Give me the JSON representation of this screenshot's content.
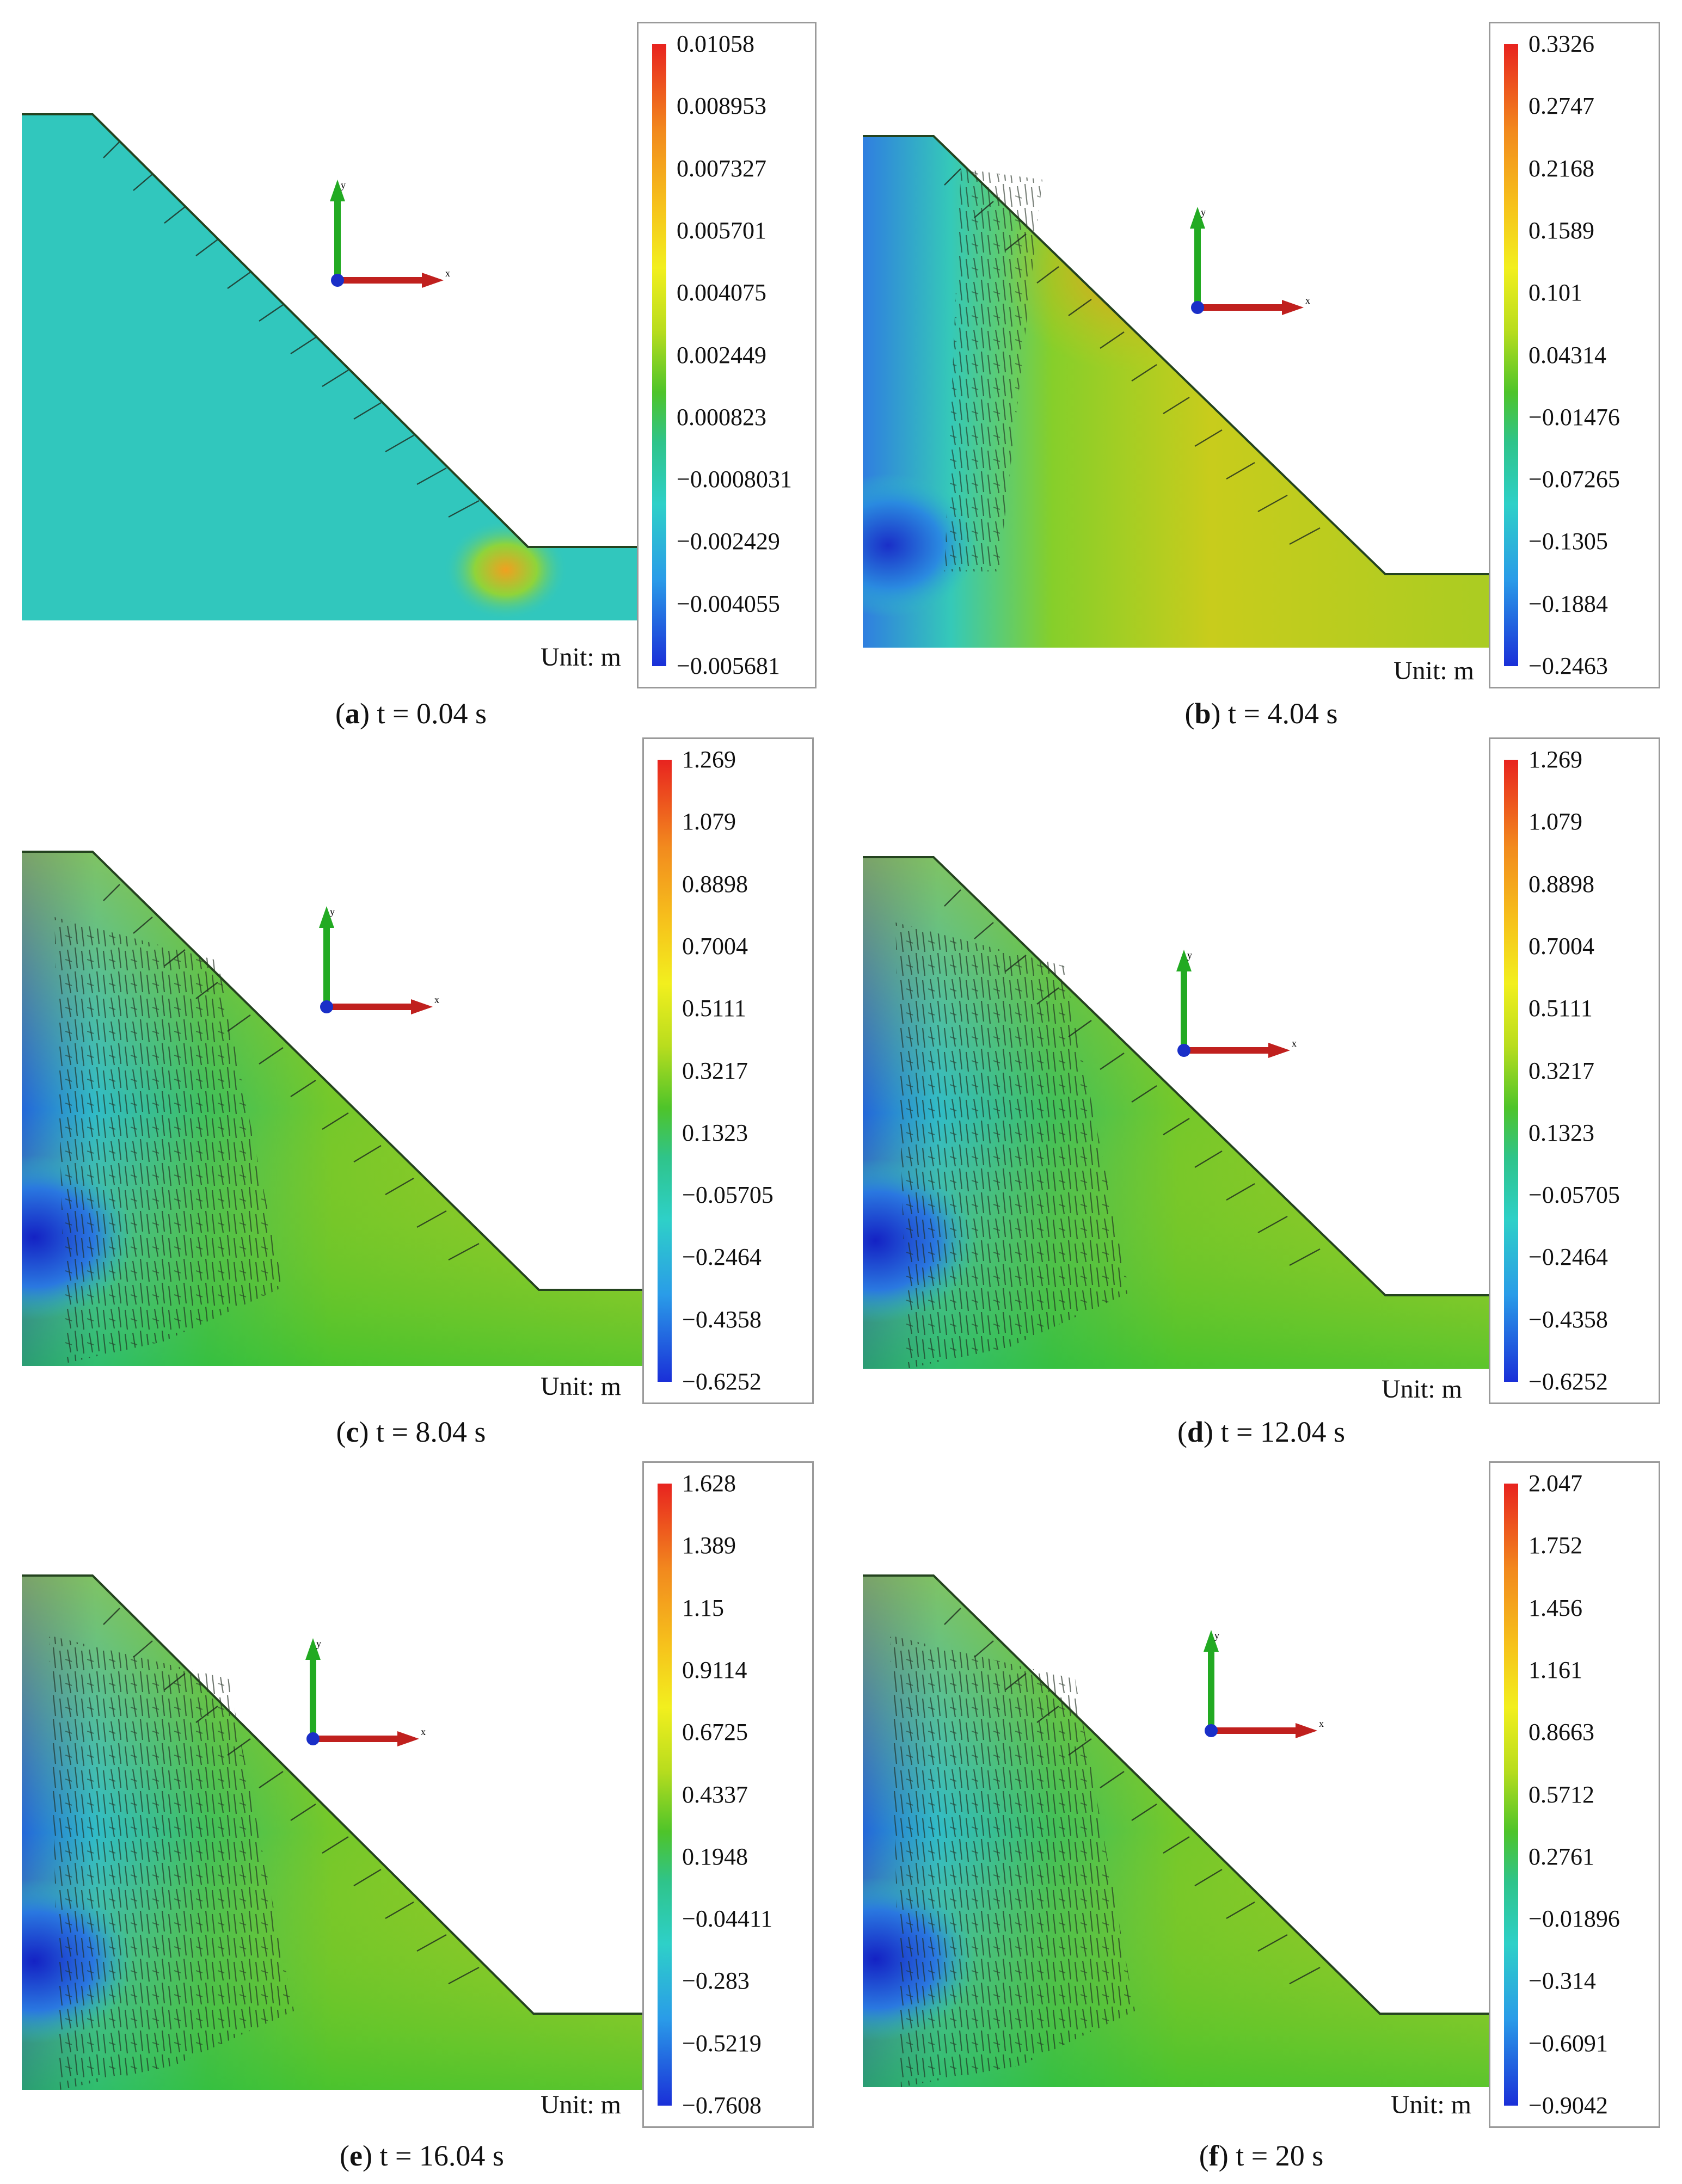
{
  "unit_label": "Unit: m",
  "axis_labels": {
    "x": "x",
    "y": "y"
  },
  "panels": [
    {
      "id": "a",
      "letter": "a",
      "time": "t = 0.04 s",
      "legend": [
        "0.01058",
        "0.008953",
        "0.007327",
        "0.005701",
        "0.004075",
        "0.002449",
        "0.000823",
        "−0.0008031",
        "−0.002429",
        "−0.004055",
        "−0.005681"
      ]
    },
    {
      "id": "b",
      "letter": "b",
      "time": "t = 4.04 s",
      "legend": [
        "0.3326",
        "0.2747",
        "0.2168",
        "0.1589",
        "0.101",
        "0.04314",
        "−0.01476",
        "−0.07265",
        "−0.1305",
        "−0.1884",
        "−0.2463"
      ]
    },
    {
      "id": "c",
      "letter": "c",
      "time": "t = 8.04 s",
      "legend": [
        "1.269",
        "1.079",
        "0.8898",
        "0.7004",
        "0.5111",
        "0.3217",
        "0.1323",
        "−0.05705",
        "−0.2464",
        "−0.4358",
        "−0.6252"
      ]
    },
    {
      "id": "d",
      "letter": "d",
      "time": "t = 12.04 s",
      "legend": [
        "1.269",
        "1.079",
        "0.8898",
        "0.7004",
        "0.5111",
        "0.3217",
        "0.1323",
        "−0.05705",
        "−0.2464",
        "−0.4358",
        "−0.6252"
      ]
    },
    {
      "id": "e",
      "letter": "e",
      "time": "t = 16.04 s",
      "legend": [
        "1.628",
        "1.389",
        "1.15",
        "0.9114",
        "0.6725",
        "0.4337",
        "0.1948",
        "−0.04411",
        "−0.283",
        "−0.5219",
        "−0.7608"
      ]
    },
    {
      "id": "f",
      "letter": "f",
      "time": "t = 20 s",
      "legend": [
        "2.047",
        "1.752",
        "1.456",
        "1.161",
        "0.8663",
        "0.5712",
        "0.2761",
        "−0.01896",
        "−0.314",
        "−0.6091",
        "−0.9042"
      ]
    }
  ]
}
